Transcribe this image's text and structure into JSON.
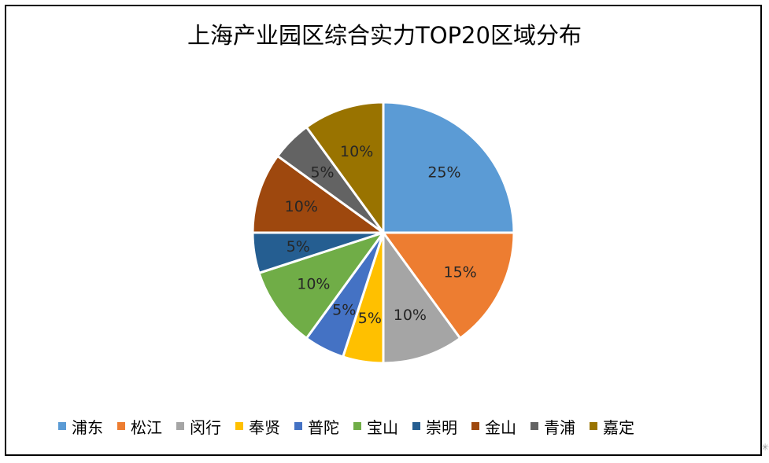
{
  "chart_data": {
    "type": "pie",
    "title": "上海产业园区综合实力TOP20区域分布",
    "categories": [
      "浦东",
      "松江",
      "闵行",
      "奉贤",
      "普陀",
      "宝山",
      "崇明",
      "金山",
      "青浦",
      "嘉定"
    ],
    "values": [
      25,
      15,
      10,
      5,
      5,
      10,
      5,
      10,
      5,
      10
    ],
    "labels": [
      "25%",
      "15%",
      "10%",
      "5%",
      "5%",
      "10%",
      "5%",
      "10%",
      "5%",
      "10%"
    ],
    "colors": [
      "#5b9bd5",
      "#ed7d31",
      "#a5a5a5",
      "#ffc000",
      "#4472c4",
      "#70ad47",
      "#255e91",
      "#9e480e",
      "#636363",
      "#997300"
    ],
    "legend_position": "bottom"
  }
}
